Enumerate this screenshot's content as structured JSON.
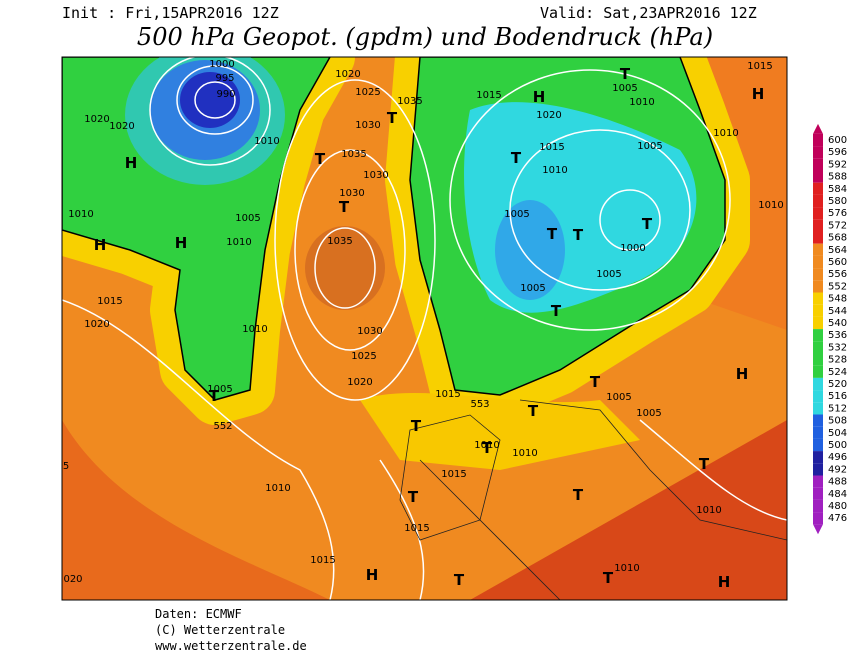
{
  "header": {
    "init": "Init : Fri,15APR2016 12Z",
    "valid": "Valid: Sat,23APR2016 12Z",
    "title": "500 hPa Geopot. (gpdm) und Bodendruck (hPa)"
  },
  "colorbar": {
    "levels": [
      600,
      596,
      592,
      588,
      584,
      580,
      576,
      572,
      568,
      564,
      560,
      556,
      552,
      548,
      544,
      540,
      536,
      532,
      528,
      524,
      520,
      516,
      512,
      508,
      504,
      500,
      496,
      492,
      488,
      484,
      480,
      476
    ]
  },
  "map": {
    "isobar_labels": [
      "1000",
      "995",
      "990",
      "1020",
      "1025",
      "1035",
      "1030",
      "1015",
      "1005",
      "1010",
      "1015",
      "1020",
      "1020",
      "1010",
      "1035",
      "1030",
      "1030",
      "1020",
      "1015",
      "1010",
      "1005",
      "1010",
      "1010",
      "1005",
      "1010",
      "1010",
      "1035",
      "1005",
      "1000",
      "1005",
      "1005",
      "1015",
      "1020",
      "1010",
      "1030",
      "1025",
      "1020",
      "1005",
      "552",
      "1015",
      "553",
      "1005",
      "1005",
      "1010",
      "1010",
      "1015",
      "1010",
      "1015",
      "1015",
      "1010",
      "1010",
      "020",
      "5"
    ],
    "pressure_centers": [
      "H",
      "T",
      "H",
      "T",
      "T",
      "T",
      "T",
      "T",
      "T",
      "T",
      "T",
      "H",
      "H",
      "H",
      "T",
      "T",
      "T",
      "T",
      "T",
      "H",
      "T",
      "T",
      "T",
      "H",
      "T",
      "T",
      "H"
    ]
  },
  "footer": {
    "source": "Daten: ECMWF",
    "copyright": "(C) Wetterzentrale",
    "url": "www.wetterzentrale.de"
  }
}
